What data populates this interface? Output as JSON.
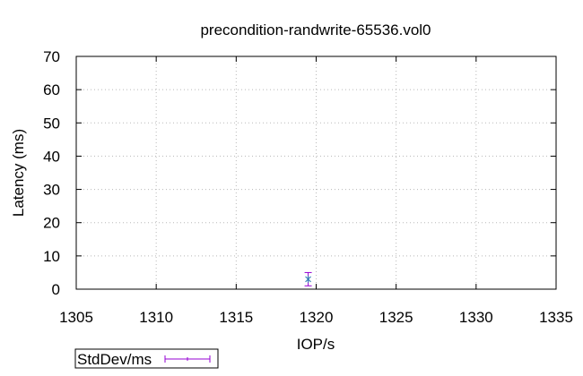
{
  "chart_data": {
    "type": "scatter",
    "title": "precondition-randwrite-65536.vol0",
    "xlabel": "IOP/s",
    "ylabel": "Latency (ms)",
    "xlim": [
      1305,
      1335
    ],
    "ylim": [
      0,
      70
    ],
    "xticks": [
      1305,
      1310,
      1315,
      1320,
      1325,
      1330,
      1335
    ],
    "yticks": [
      0,
      10,
      20,
      30,
      40,
      50,
      60,
      70
    ],
    "grid": true,
    "legend_position": "bottom-left",
    "series": [
      {
        "name": "StdDev/ms",
        "color": "#9400d3",
        "marker_color": "#2a7ab0",
        "points": [
          {
            "x": 1319.5,
            "y": 3.0,
            "ylow": 1.0,
            "yhigh": 5.0
          }
        ]
      }
    ]
  }
}
